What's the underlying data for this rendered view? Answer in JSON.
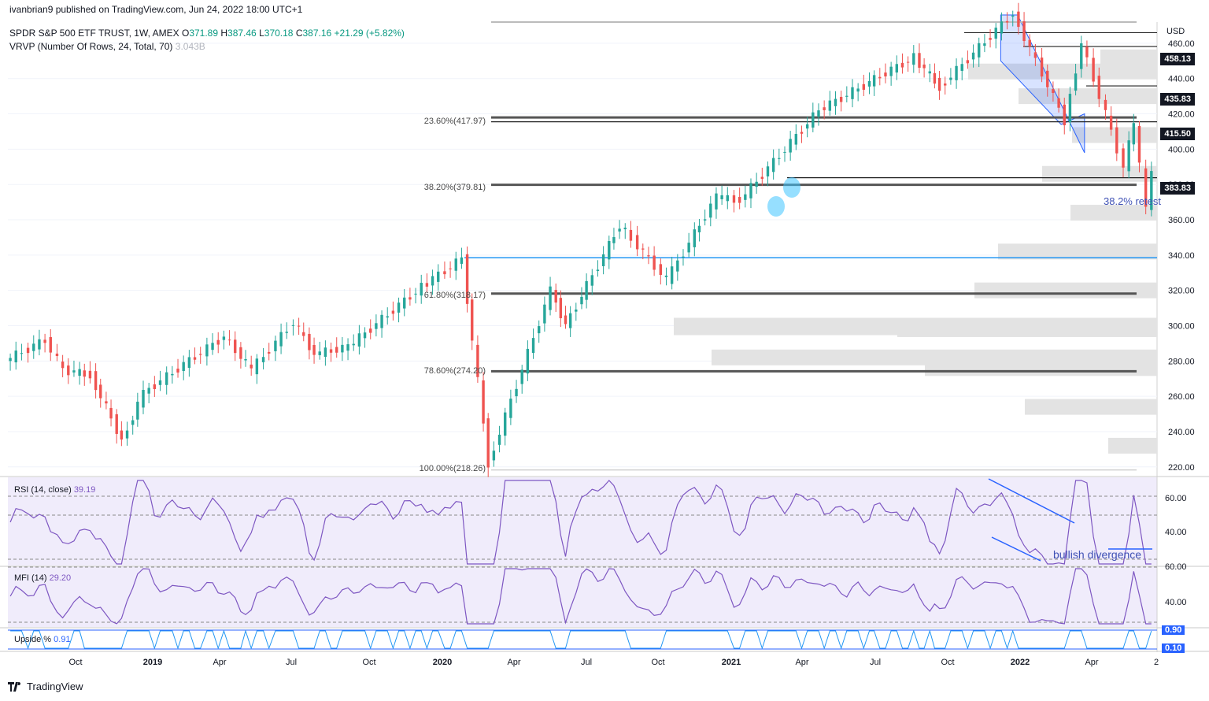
{
  "header": {
    "publisher": "ivanbrian9 published on TradingView.com, Jun 24, 2022 18:00 UTC+1",
    "symbol": "SPDR S&P 500 ETF TRUST, 1W, AMEX",
    "o_label": "O",
    "o": "371.89",
    "h_label": "H",
    "h": "387.46",
    "l_label": "L",
    "l": "370.18",
    "c_label": "C",
    "c": "387.16",
    "change": "+21.29 (+5.82%)",
    "vrvp": "VRVP (Number Of Rows, 24, Total, 70)",
    "vrvp_value": "3.043B"
  },
  "currency": "USD",
  "indicators": {
    "rsi": {
      "label": "RSI (14, close)",
      "value": "39.19"
    },
    "mfi": {
      "label": "MFI (14)",
      "value": "29.20"
    },
    "upside": {
      "label": "Upside %",
      "value": "0.91"
    }
  },
  "fib_labels": [
    "23.60%(417.97)",
    "38.20%(379.81)",
    "61.80%(318.17)",
    "78.60%(274.20)",
    "100.00%(218.26)"
  ],
  "annotations": {
    "retest": "38.2% retest",
    "divergence": "bullish divergence"
  },
  "price_tags": [
    "458.13",
    "435.83",
    "415.50",
    "383.83"
  ],
  "rsi_axis": [
    "60.00",
    "40.00",
    "60.00",
    "40.00"
  ],
  "upside_tags": [
    "0.90",
    "0.10"
  ],
  "x_ticks": [
    "Oct",
    "2019",
    "Apr",
    "Jul",
    "Oct",
    "2020",
    "Apr",
    "Jul",
    "Oct",
    "2021",
    "Apr",
    "Jul",
    "Oct",
    "2022",
    "Apr",
    "2"
  ],
  "footer": {
    "brand": "TradingView"
  },
  "colors": {
    "up": "#26a69a",
    "down": "#ef5350",
    "level": "#555555",
    "blue": "#2196f3",
    "rsi": "#7e57c2"
  },
  "chart_data": {
    "type": "candlestick",
    "title": "SPDR S&P 500 ETF TRUST, 1W, AMEX",
    "ylabel": "USD",
    "ylim": [
      215,
      472
    ],
    "y_ticks": [
      220,
      240,
      260,
      280,
      300,
      320,
      340,
      360,
      380,
      400,
      420,
      440,
      460
    ],
    "horizontal_levels": [
      {
        "label": "23.60%(417.97)",
        "value": 417.97,
        "style": "fib"
      },
      {
        "label": "38.20%(379.81)",
        "value": 379.81,
        "style": "fib"
      },
      {
        "label": "61.80%(318.17)",
        "value": 318.17,
        "style": "fib"
      },
      {
        "label": "78.60%(274.20)",
        "value": 274.2,
        "style": "fib"
      },
      {
        "label": "100.00%(218.26)",
        "value": 218.26,
        "style": "fib"
      },
      {
        "value": 458.13,
        "style": "resistance"
      },
      {
        "value": 435.83,
        "style": "resistance"
      },
      {
        "value": 415.5,
        "style": "resistance"
      },
      {
        "value": 383.83,
        "style": "resistance"
      },
      {
        "value": 338.5,
        "style": "blue"
      }
    ],
    "weekly_close_path": [
      {
        "date": "2018-08-01",
        "close": 280
      },
      {
        "date": "2018-09-20",
        "close": 292
      },
      {
        "date": "2018-10-12",
        "close": 275
      },
      {
        "date": "2018-11-15",
        "close": 272
      },
      {
        "date": "2018-12-24",
        "close": 235
      },
      {
        "date": "2019-01-20",
        "close": 262
      },
      {
        "date": "2019-04-30",
        "close": 294
      },
      {
        "date": "2019-06-03",
        "close": 275
      },
      {
        "date": "2019-07-25",
        "close": 302
      },
      {
        "date": "2019-08-20",
        "close": 284
      },
      {
        "date": "2019-10-01",
        "close": 288
      },
      {
        "date": "2019-12-31",
        "close": 322
      },
      {
        "date": "2020-02-19",
        "close": 338
      },
      {
        "date": "2020-03-23",
        "close": 222
      },
      {
        "date": "2020-06-08",
        "close": 320
      },
      {
        "date": "2020-06-26",
        "close": 300
      },
      {
        "date": "2020-09-02",
        "close": 357
      },
      {
        "date": "2020-10-30",
        "close": 326
      },
      {
        "date": "2020-12-31",
        "close": 373
      },
      {
        "date": "2021-01-29",
        "close": 371
      },
      {
        "date": "2021-05-07",
        "close": 422
      },
      {
        "date": "2021-09-02",
        "close": 452
      },
      {
        "date": "2021-10-04",
        "close": 435
      },
      {
        "date": "2022-01-03",
        "close": 477
      },
      {
        "date": "2022-03-08",
        "close": 416
      },
      {
        "date": "2022-03-29",
        "close": 460
      },
      {
        "date": "2022-05-20",
        "close": 390
      },
      {
        "date": "2022-06-02",
        "close": 415
      },
      {
        "date": "2022-06-17",
        "close": 366
      },
      {
        "date": "2022-06-24",
        "close": 387.16
      }
    ],
    "rsi_ticks": [
      40,
      60
    ],
    "mfi_ticks": [
      40,
      60
    ]
  }
}
